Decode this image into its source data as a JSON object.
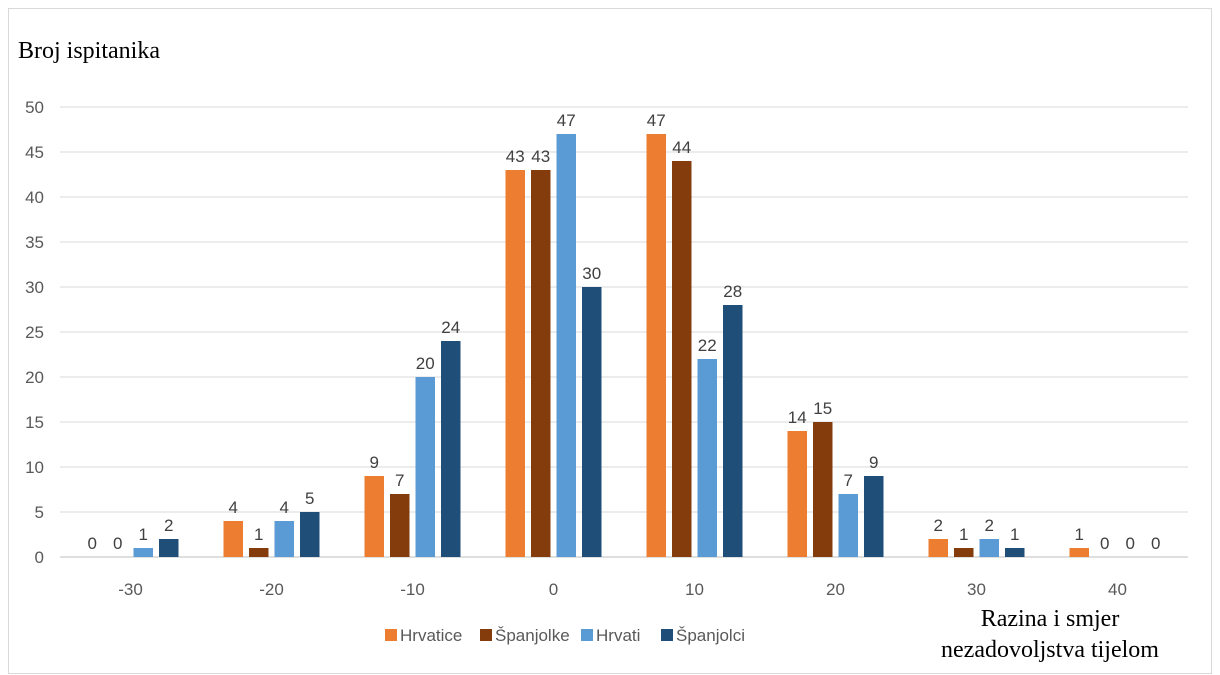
{
  "chart_data": {
    "type": "bar",
    "ylabel": "Broj ispitanika",
    "xlabel_lines": [
      "Razina i smjer",
      "nezadovoljstva tijelom"
    ],
    "categories": [
      "-30",
      "-20",
      "-10",
      "0",
      "10",
      "20",
      "30",
      "40"
    ],
    "series": [
      {
        "name": "Hrvatice",
        "color": "#ed7d31",
        "values": [
          0,
          4,
          9,
          43,
          47,
          14,
          2,
          1
        ]
      },
      {
        "name": "Španjolke",
        "color": "#843c0c",
        "values": [
          0,
          1,
          7,
          43,
          44,
          15,
          1,
          0
        ]
      },
      {
        "name": "Hrvati",
        "color": "#5b9bd5",
        "values": [
          1,
          4,
          20,
          47,
          22,
          7,
          2,
          0
        ]
      },
      {
        "name": "Španjolci",
        "color": "#1f4e79",
        "values": [
          2,
          5,
          24,
          30,
          28,
          9,
          1,
          0
        ]
      }
    ],
    "ylim": [
      0,
      50
    ],
    "yticks": [
      0,
      5,
      10,
      15,
      20,
      25,
      30,
      35,
      40,
      45,
      50
    ],
    "grid": true,
    "data_labels": true,
    "legend_position": "bottom"
  }
}
